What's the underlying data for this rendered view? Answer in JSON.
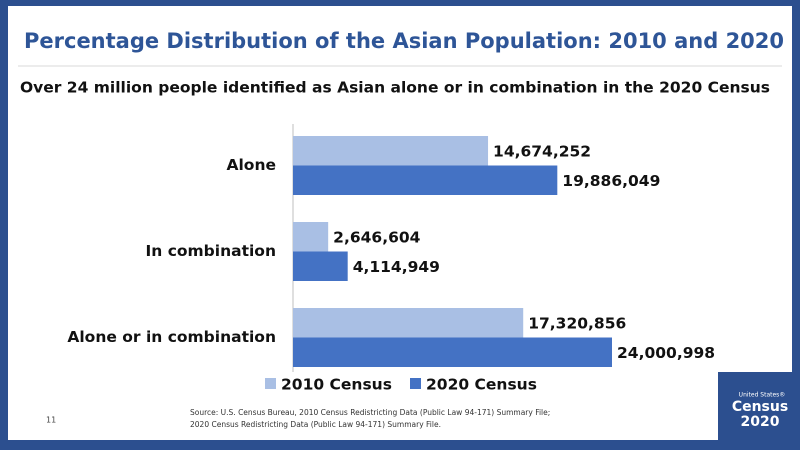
{
  "chart_data": {
    "type": "hbar",
    "title": "Percentage Distribution of the Asian Population: 2010 and 2020",
    "subtitle": "Over 24 million people identified as Asian alone or in combination in the 2020 Census",
    "categories": [
      "Alone",
      "In combination",
      "Alone or in combination"
    ],
    "series": [
      {
        "name": "2010 Census",
        "color": "#a9bfe4",
        "values": [
          14674252,
          2646604,
          17320856
        ],
        "value_labels": [
          "14,674,252",
          "2,646,604",
          "17,320,856"
        ]
      },
      {
        "name": "2020 Census",
        "color": "#4472c4",
        "values": [
          19886049,
          4114949,
          24000998
        ],
        "value_labels": [
          "19,886,049",
          "4,114,949",
          "24,000,998"
        ]
      }
    ]
  },
  "slide_number": "11",
  "source": [
    "Source: U.S. Census Bureau, 2010 Census Redistricting Data (Public Law 94-171) Summary File;",
    "2020 Census Redistricting Data (Public Law 94-171) Summary File."
  ],
  "logo": {
    "line1": "United States®",
    "line2": "Census",
    "line3": "2020"
  }
}
